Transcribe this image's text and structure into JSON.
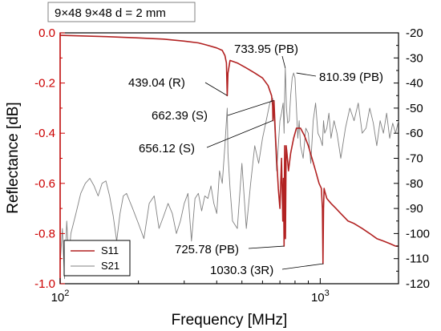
{
  "header": {
    "label": "9×48  9×48 d = 2 mm"
  },
  "chart_data": {
    "type": "line",
    "xscale": "log",
    "xlabel": "Frequency [MHz]",
    "ylabel": "Reflectance [dB]",
    "xlim": [
      100,
      2000
    ],
    "ylim": [
      -1.0,
      0.0
    ],
    "y2lim": [
      -120,
      -20
    ],
    "grid": false,
    "legend_position": "bottom-left",
    "x_ticks": [
      {
        "value": 100,
        "base": "10",
        "exp": "2"
      },
      {
        "value": 1000,
        "base": "10",
        "exp": "3"
      }
    ],
    "y_ticks": [
      {
        "value": 0.0,
        "label": "0.0"
      },
      {
        "value": -0.2,
        "label": "-0.2"
      },
      {
        "value": -0.4,
        "label": "-0.4"
      },
      {
        "value": -0.6,
        "label": "-0.6"
      },
      {
        "value": -0.8,
        "label": "-0.8"
      },
      {
        "value": -1.0,
        "label": "-1.0"
      }
    ],
    "y2_ticks": [
      -20,
      -30,
      -40,
      -50,
      -60,
      -70,
      -80,
      -90,
      -100,
      -110,
      -120
    ],
    "colors": {
      "s11": "#b22222",
      "s21": "#808080",
      "ylabel": "#cc0000",
      "left_axis": "#cc0000"
    },
    "series": [
      {
        "name": "S11",
        "axis": "left",
        "x": [
          100,
          150,
          200,
          250,
          300,
          340,
          370,
          400,
          420,
          430,
          436,
          439,
          442,
          450,
          480,
          520,
          560,
          600,
          630,
          650,
          656,
          658,
          662,
          664,
          666,
          672,
          680,
          690,
          700,
          710,
          718,
          722,
          726,
          730,
          735,
          740,
          745,
          755,
          770,
          790,
          810,
          840,
          870,
          900,
          930,
          960,
          990,
          1010,
          1020,
          1025,
          1030,
          1035,
          1040,
          1060,
          1100,
          1150,
          1200,
          1280,
          1350,
          1450,
          1550,
          1650,
          1750,
          1850,
          1950,
          2000
        ],
        "y": [
          -0.01,
          -0.015,
          -0.02,
          -0.025,
          -0.033,
          -0.04,
          -0.05,
          -0.06,
          -0.07,
          -0.09,
          -0.12,
          -0.25,
          -0.16,
          -0.11,
          -0.12,
          -0.14,
          -0.16,
          -0.18,
          -0.21,
          -0.25,
          -0.29,
          -0.35,
          -0.31,
          -0.27,
          -0.3,
          -0.4,
          -0.5,
          -0.62,
          -0.7,
          -0.5,
          -0.75,
          -0.58,
          -0.85,
          -0.45,
          -0.82,
          -0.45,
          -0.48,
          -0.55,
          -0.48,
          -0.42,
          -0.38,
          -0.38,
          -0.41,
          -0.45,
          -0.5,
          -0.55,
          -0.6,
          -0.62,
          -0.7,
          -0.92,
          -0.7,
          -0.62,
          -0.63,
          -0.66,
          -0.68,
          -0.7,
          -0.72,
          -0.75,
          -0.76,
          -0.78,
          -0.8,
          -0.82,
          -0.83,
          -0.84,
          -0.85,
          -0.85
        ]
      },
      {
        "name": "S21",
        "axis": "right",
        "x": [
          100,
          102,
          104,
          106,
          108,
          110,
          115,
          120,
          125,
          130,
          135,
          140,
          145,
          150,
          155,
          160,
          165,
          170,
          175,
          180,
          190,
          200,
          210,
          220,
          230,
          240,
          250,
          260,
          270,
          280,
          290,
          300,
          310,
          320,
          330,
          340,
          350,
          360,
          370,
          380,
          390,
          400,
          410,
          420,
          430,
          436,
          439,
          442,
          450,
          460,
          480,
          500,
          520,
          540,
          560,
          580,
          600,
          620,
          640,
          656,
          662,
          670,
          680,
          690,
          700,
          710,
          720,
          726,
          730,
          734,
          738,
          742,
          750,
          760,
          770,
          780,
          790,
          800,
          810,
          820,
          830,
          840,
          860,
          880,
          900,
          920,
          940,
          960,
          980,
          1000,
          1020,
          1030,
          1040,
          1060,
          1080,
          1100,
          1130,
          1160,
          1200,
          1250,
          1300,
          1350,
          1400,
          1450,
          1500,
          1550,
          1600,
          1650,
          1700,
          1750,
          1800,
          1850,
          1900,
          1950,
          2000
        ],
        "y": [
          -112,
          -98,
          -118,
          -95,
          -110,
          -100,
          -92,
          -84,
          -80,
          -78,
          -81,
          -85,
          -80,
          -79,
          -85,
          -93,
          -103,
          -92,
          -85,
          -84,
          -90,
          -96,
          -102,
          -88,
          -85,
          -98,
          -93,
          -88,
          -92,
          -100,
          -95,
          -88,
          -84,
          -103,
          -86,
          -84,
          -91,
          -85,
          -86,
          -81,
          -88,
          -92,
          -75,
          -80,
          -65,
          -55,
          -50,
          -68,
          -82,
          -95,
          -98,
          -72,
          -98,
          -80,
          -65,
          -72,
          -62,
          -55,
          -48,
          -46,
          -50,
          -60,
          -75,
          -65,
          -55,
          -52,
          -48,
          -60,
          -45,
          -34,
          -42,
          -50,
          -56,
          -55,
          -45,
          -38,
          -36,
          -38,
          -50,
          -62,
          -55,
          -65,
          -70,
          -58,
          -60,
          -72,
          -55,
          -48,
          -60,
          -62,
          -65,
          -55,
          -60,
          -58,
          -52,
          -62,
          -55,
          -60,
          -70,
          -58,
          -50,
          -55,
          -48,
          -60,
          -58,
          -50,
          -56,
          -65,
          -55,
          -60,
          -52,
          -62,
          -56,
          -60,
          -55
        ]
      }
    ],
    "annotations": [
      {
        "label": "439.04 (R)",
        "x": 439.04,
        "y": -0.25,
        "series": "S11"
      },
      {
        "label": "662.39 (S)",
        "x": 662.39,
        "y": -0.27,
        "series": "S11"
      },
      {
        "label": "656.12 (S)",
        "x": 656.12,
        "y": -0.35,
        "series": "S11"
      },
      {
        "label": "733.95 (PB)",
        "x": 733.95,
        "y": -34,
        "series": "S21"
      },
      {
        "label": "810.39 (PB)",
        "x": 810.39,
        "y": -36,
        "series": "S21"
      },
      {
        "label": "725.78 (PB)",
        "x": 725.78,
        "y": -0.85,
        "series": "S11"
      },
      {
        "label": "1030.3 (3R)",
        "x": 1030.3,
        "y": -0.92,
        "series": "S11"
      }
    ]
  }
}
